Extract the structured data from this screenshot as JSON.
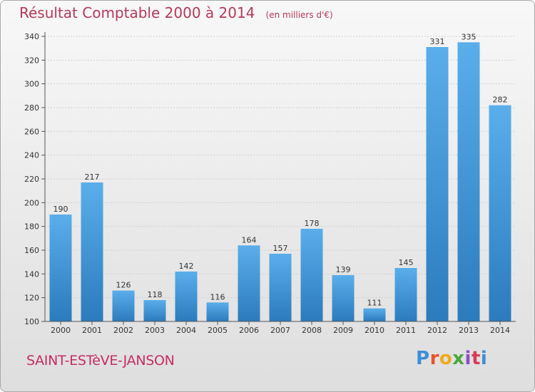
{
  "title": "Résultat Comptable 2000 à 2014",
  "subtitle": "(en milliers d'€)",
  "place": "SAINT-ESTèVE-JANSON",
  "logo": "Proxiti",
  "colors": {
    "bar_light": "#5aaeea",
    "bar_dark": "#2b7bbd",
    "title": "#b5385a"
  },
  "chart_data": {
    "type": "bar",
    "categories": [
      "2000",
      "2001",
      "2002",
      "2003",
      "2004",
      "2005",
      "2006",
      "2007",
      "2008",
      "2009",
      "2010",
      "2011",
      "2012",
      "2013",
      "2014"
    ],
    "values": [
      190,
      217,
      126,
      118,
      142,
      116,
      164,
      157,
      178,
      139,
      111,
      145,
      331,
      335,
      282
    ],
    "ylim": [
      100,
      340
    ],
    "yticks": [
      100,
      120,
      140,
      160,
      180,
      200,
      220,
      240,
      260,
      280,
      300,
      320,
      340
    ],
    "grid": true
  }
}
